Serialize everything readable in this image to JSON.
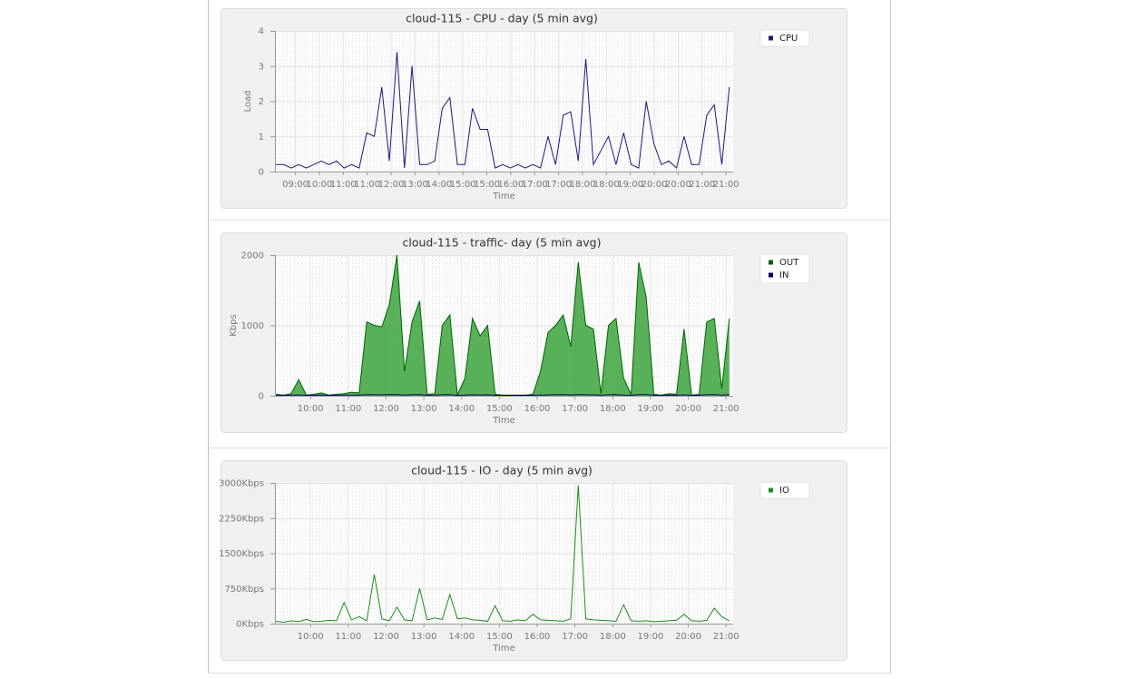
{
  "chart_data": [
    {
      "type": "line",
      "title": "cloud-115 - CPU -  day (5 min avg)",
      "ylabel": "Load",
      "xlabel": "Time",
      "x": [
        9.1,
        9.3,
        9.5,
        9.7,
        9.9,
        10.1,
        10.3,
        10.5,
        10.7,
        10.9,
        11.1,
        11.3,
        11.5,
        11.7,
        11.9,
        12.1,
        12.3,
        12.5,
        12.7,
        12.9,
        13.1,
        13.3,
        13.5,
        13.7,
        13.9,
        14.1,
        14.3,
        14.5,
        14.7,
        14.9,
        15.1,
        15.3,
        15.5,
        15.7,
        15.9,
        16.1,
        16.3,
        16.5,
        16.7,
        16.9,
        17.1,
        17.3,
        17.5,
        17.7,
        17.9,
        18.1,
        18.3,
        18.5,
        18.7,
        18.9,
        19.1,
        19.3,
        19.5,
        19.7,
        19.9,
        20.1,
        20.3,
        20.5,
        20.7,
        20.9,
        21.1
      ],
      "series": [
        {
          "name": "CPU",
          "color": "#1a1a7a",
          "values": [
            0.2,
            0.2,
            0.1,
            0.2,
            0.1,
            0.2,
            0.3,
            0.2,
            0.3,
            0.1,
            0.2,
            0.1,
            1.1,
            1.0,
            2.4,
            0.3,
            3.4,
            0.1,
            3.0,
            0.2,
            0.2,
            0.3,
            1.8,
            2.1,
            0.2,
            0.2,
            1.8,
            1.2,
            1.2,
            0.1,
            0.2,
            0.1,
            0.2,
            0.1,
            0.2,
            0.1,
            1.0,
            0.2,
            1.6,
            1.7,
            0.3,
            3.2,
            0.2,
            0.6,
            1.0,
            0.2,
            1.1,
            0.2,
            0.1,
            2.0,
            0.8,
            0.2,
            0.3,
            0.1,
            1.0,
            0.2,
            0.2,
            1.6,
            1.9,
            0.2,
            2.4
          ]
        }
      ],
      "xlim": [
        9.07,
        21.2
      ],
      "xticks": [
        {
          "value": 9.6,
          "label": "09:00"
        },
        {
          "value": 10.2333,
          "label": "10:00"
        },
        {
          "value": 10.8667,
          "label": "11:00"
        },
        {
          "value": 11.5,
          "label": "11:00"
        },
        {
          "value": 12.1333,
          "label": "12:00"
        },
        {
          "value": 12.7667,
          "label": "13:00"
        },
        {
          "value": 13.4,
          "label": "14:00"
        },
        {
          "value": 14.0333,
          "label": "15:00"
        },
        {
          "value": 14.6667,
          "label": "15:00"
        },
        {
          "value": 15.3,
          "label": "16:00"
        },
        {
          "value": 15.9333,
          "label": "17:00"
        },
        {
          "value": 16.5667,
          "label": "17:00"
        },
        {
          "value": 17.2,
          "label": "18:00"
        },
        {
          "value": 17.8333,
          "label": "18:00"
        },
        {
          "value": 18.4667,
          "label": "19:00"
        },
        {
          "value": 19.1,
          "label": "20:00"
        },
        {
          "value": 19.7333,
          "label": "20:00"
        },
        {
          "value": 20.3667,
          "label": "21:00"
        },
        {
          "value": 21.0,
          "label": "21:00"
        }
      ],
      "ylim": [
        0,
        4
      ],
      "yticks": [
        0,
        1,
        2,
        3,
        4
      ],
      "grid": true
    },
    {
      "type": "area",
      "title": "cloud-115 - traffic-  day (5 min avg)",
      "ylabel": "Kbps",
      "xlabel": "Time",
      "x": [
        9.1,
        9.3,
        9.5,
        9.7,
        9.9,
        10.1,
        10.3,
        10.5,
        10.7,
        10.9,
        11.1,
        11.3,
        11.5,
        11.7,
        11.9,
        12.1,
        12.3,
        12.5,
        12.7,
        12.9,
        13.1,
        13.3,
        13.5,
        13.7,
        13.9,
        14.1,
        14.3,
        14.5,
        14.7,
        14.9,
        15.1,
        15.3,
        15.5,
        15.7,
        15.9,
        16.1,
        16.3,
        16.5,
        16.7,
        16.9,
        17.1,
        17.3,
        17.5,
        17.7,
        17.9,
        18.1,
        18.3,
        18.5,
        18.7,
        18.9,
        19.1,
        19.3,
        19.5,
        19.7,
        19.9,
        20.1,
        20.3,
        20.5,
        20.7,
        20.9,
        21.1
      ],
      "series": [
        {
          "name": "OUT",
          "color": "#006400",
          "values": [
            20,
            10,
            30,
            230,
            10,
            20,
            40,
            10,
            20,
            30,
            50,
            40,
            1050,
            1000,
            980,
            1300,
            2000,
            350,
            1050,
            1350,
            20,
            30,
            1000,
            1150,
            10,
            250,
            1100,
            850,
            1000,
            20,
            10,
            10,
            10,
            10,
            20,
            350,
            900,
            1000,
            1150,
            700,
            1900,
            1000,
            950,
            30,
            1000,
            1100,
            250,
            20,
            1900,
            1400,
            20,
            10,
            30,
            20,
            950,
            10,
            20,
            1050,
            1100,
            100,
            1100
          ]
        },
        {
          "name": "IN",
          "color": "#000066",
          "values": [
            8,
            6,
            9,
            12,
            7,
            8,
            10,
            6,
            8,
            9,
            10,
            9,
            15,
            14,
            13,
            16,
            18,
            10,
            14,
            15,
            8,
            9,
            14,
            15,
            7,
            10,
            14,
            12,
            13,
            8,
            6,
            6,
            6,
            6,
            8,
            10,
            13,
            14,
            15,
            12,
            17,
            14,
            13,
            8,
            14,
            15,
            10,
            8,
            17,
            15,
            8,
            6,
            9,
            8,
            13,
            6,
            8,
            14,
            15,
            9,
            14
          ],
          "line": true
        }
      ],
      "xlim": [
        9.07,
        21.2
      ],
      "xticks": [
        {
          "value": 10,
          "label": "10:00"
        },
        {
          "value": 11,
          "label": "11:00"
        },
        {
          "value": 12,
          "label": "12:00"
        },
        {
          "value": 13,
          "label": "13:00"
        },
        {
          "value": 14,
          "label": "14:00"
        },
        {
          "value": 15,
          "label": "15:00"
        },
        {
          "value": 16,
          "label": "16:00"
        },
        {
          "value": 17,
          "label": "17:00"
        },
        {
          "value": 18,
          "label": "18:00"
        },
        {
          "value": 19,
          "label": "19:00"
        },
        {
          "value": 20,
          "label": "20:00"
        },
        {
          "value": 21,
          "label": "21:00"
        }
      ],
      "ylim": [
        0,
        2000
      ],
      "yticks": [
        0,
        1000,
        2000
      ],
      "grid": true
    },
    {
      "type": "line",
      "title": "cloud-115 - IO -  day (5 min avg)",
      "xlabel": "Time",
      "x": [
        9.1,
        9.3,
        9.5,
        9.7,
        9.9,
        10.1,
        10.3,
        10.5,
        10.7,
        10.9,
        11.1,
        11.3,
        11.5,
        11.7,
        11.9,
        12.1,
        12.3,
        12.5,
        12.7,
        12.9,
        13.1,
        13.3,
        13.5,
        13.7,
        13.9,
        14.1,
        14.3,
        14.5,
        14.7,
        14.9,
        15.1,
        15.3,
        15.5,
        15.7,
        15.9,
        16.1,
        16.3,
        16.5,
        16.7,
        16.9,
        17.1,
        17.3,
        17.5,
        17.7,
        17.9,
        18.1,
        18.3,
        18.5,
        18.7,
        18.9,
        19.1,
        19.3,
        19.5,
        19.7,
        19.9,
        20.1,
        20.3,
        20.5,
        20.7,
        20.9,
        21.1
      ],
      "series": [
        {
          "name": "IO",
          "color": "#1e8c1e",
          "values": [
            50,
            30,
            60,
            40,
            90,
            40,
            50,
            70,
            60,
            450,
            80,
            150,
            60,
            1050,
            100,
            60,
            350,
            80,
            60,
            750,
            80,
            120,
            90,
            620,
            100,
            120,
            80,
            70,
            50,
            380,
            60,
            50,
            80,
            60,
            200,
            80,
            70,
            60,
            50,
            100,
            2950,
            100,
            80,
            70,
            60,
            50,
            400,
            60,
            50,
            60,
            40,
            50,
            60,
            70,
            200,
            60,
            50,
            70,
            330,
            150,
            60
          ]
        }
      ],
      "xlim": [
        9.07,
        21.2
      ],
      "xticks": [
        {
          "value": 10,
          "label": "10:00"
        },
        {
          "value": 11,
          "label": "11:00"
        },
        {
          "value": 12,
          "label": "12:00"
        },
        {
          "value": 13,
          "label": "13:00"
        },
        {
          "value": 14,
          "label": "14:00"
        },
        {
          "value": 15,
          "label": "15:00"
        },
        {
          "value": 16,
          "label": "16:00"
        },
        {
          "value": 17,
          "label": "17:00"
        },
        {
          "value": 18,
          "label": "18:00"
        },
        {
          "value": 19,
          "label": "19:00"
        },
        {
          "value": 20,
          "label": "20:00"
        },
        {
          "value": 21,
          "label": "21:00"
        }
      ],
      "ylim": [
        0,
        3000
      ],
      "yticks": [
        {
          "value": 0,
          "label": "0Kbps"
        },
        {
          "value": 750,
          "label": "750Kbps"
        },
        {
          "value": 1500,
          "label": "1500Kbps"
        },
        {
          "value": 2250,
          "label": "2250Kbps"
        },
        {
          "value": 3000,
          "label": "3000Kbps"
        }
      ],
      "grid": true
    }
  ]
}
